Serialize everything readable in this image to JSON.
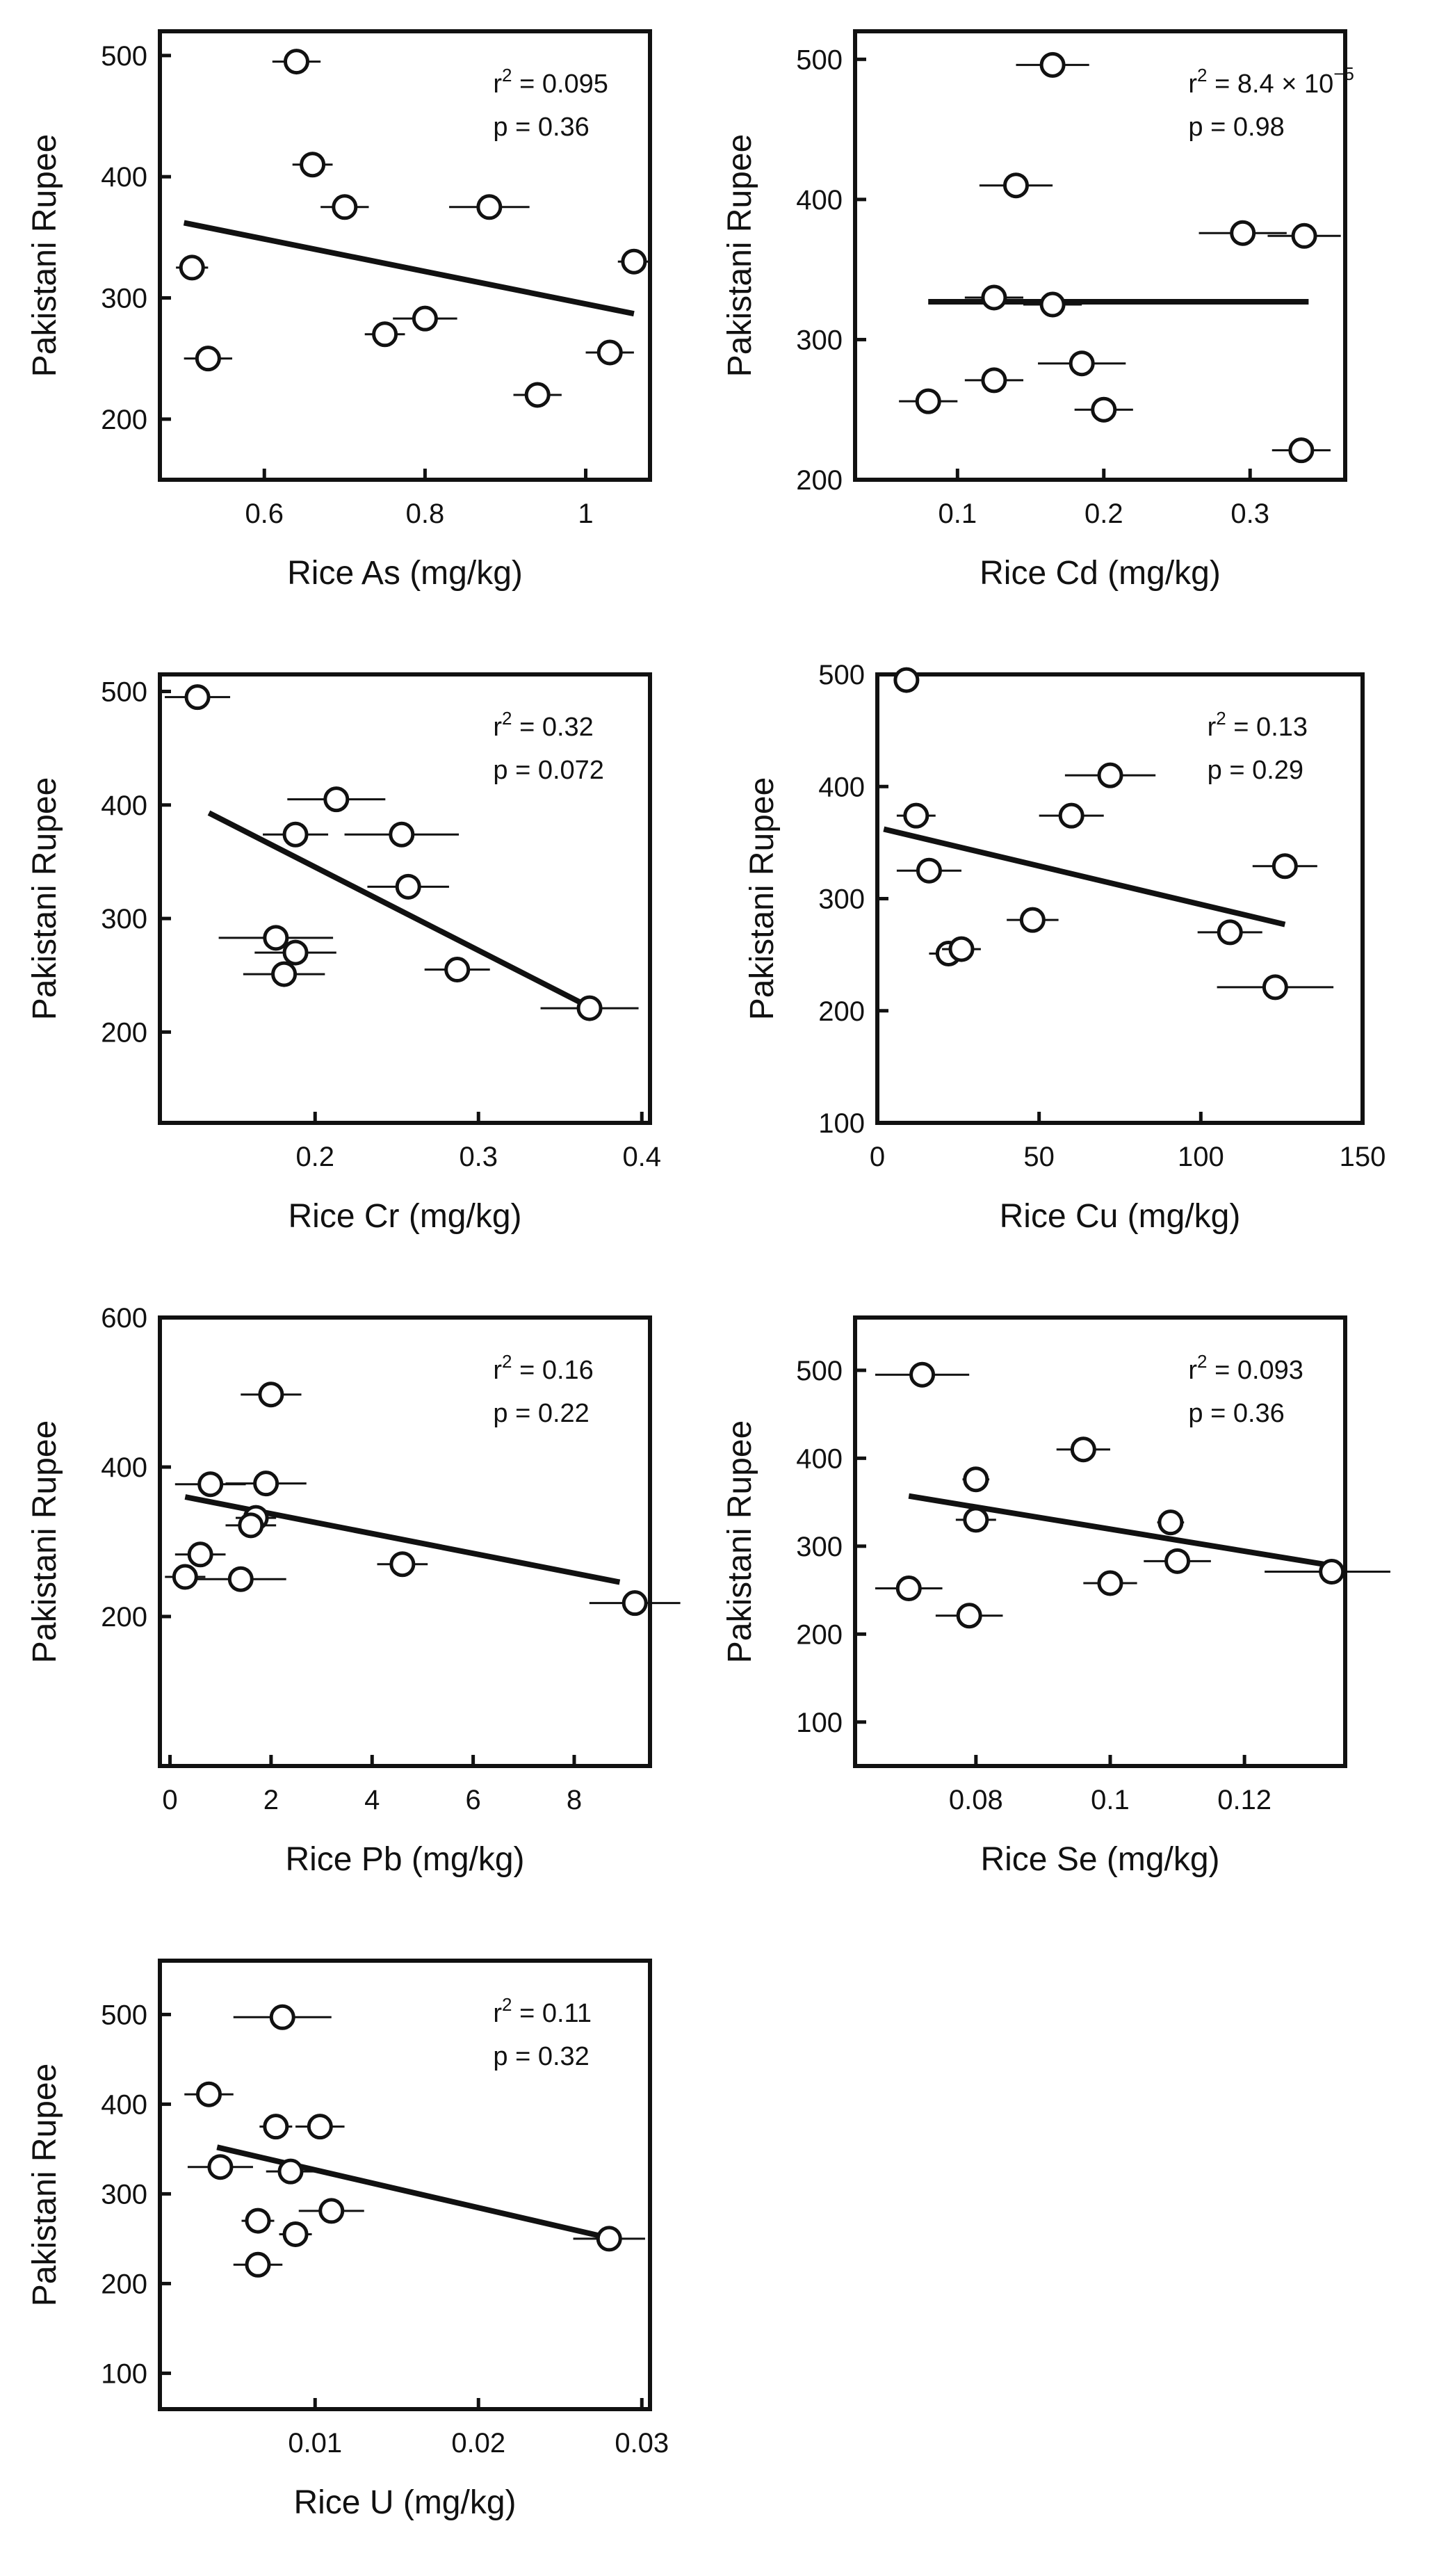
{
  "chart_data": [
    {
      "type": "scatter",
      "xlabel": "Rice As (mg/kg)",
      "ylabel": "Pakistani Rupee",
      "xlim": [
        0.47,
        1.08
      ],
      "ylim": [
        150,
        520
      ],
      "xticks": [
        0.6,
        0.8,
        1
      ],
      "xtick_labels": [
        "0.6",
        "0.8",
        "1"
      ],
      "yticks": [
        200,
        300,
        400,
        500
      ],
      "ytick_labels": [
        "200",
        "300",
        "400",
        "500"
      ],
      "annotation": {
        "r2_label": "r",
        "r2_sup": "2",
        "r2_value": " = 0.095",
        "r2_exp": "",
        "p_text": "p = 0.36"
      },
      "points": [
        {
          "x": 0.64,
          "y": 495,
          "xerr": 0.03
        },
        {
          "x": 0.66,
          "y": 410,
          "xerr": 0.025
        },
        {
          "x": 0.7,
          "y": 375,
          "xerr": 0.03
        },
        {
          "x": 0.88,
          "y": 375,
          "xerr": 0.05
        },
        {
          "x": 0.51,
          "y": 325,
          "xerr": 0.02
        },
        {
          "x": 1.06,
          "y": 330,
          "xerr": 0.02
        },
        {
          "x": 0.8,
          "y": 283,
          "xerr": 0.04
        },
        {
          "x": 0.75,
          "y": 270,
          "xerr": 0.025
        },
        {
          "x": 0.53,
          "y": 250,
          "xerr": 0.03
        },
        {
          "x": 1.03,
          "y": 255,
          "xerr": 0.03
        },
        {
          "x": 0.94,
          "y": 220,
          "xerr": 0.03
        }
      ],
      "fit": {
        "x": [
          0.5,
          1.06
        ],
        "y": [
          362,
          287
        ]
      }
    },
    {
      "type": "scatter",
      "xlabel": "Rice Cd (mg/kg)",
      "ylabel": "Pakistani Rupee",
      "xlim": [
        0.03,
        0.365
      ],
      "ylim": [
        200,
        520
      ],
      "xticks": [
        0.1,
        0.2,
        0.3
      ],
      "xtick_labels": [
        "0.1",
        "0.2",
        "0.3"
      ],
      "yticks": [
        200,
        300,
        400,
        500
      ],
      "ytick_labels": [
        "200",
        "300",
        "400",
        "500"
      ],
      "annotation": {
        "r2_label": "r",
        "r2_sup": "2",
        "r2_value": " = 8.4 × 10",
        "r2_exp": "−5",
        "p_text": "p = 0.98"
      },
      "points": [
        {
          "x": 0.165,
          "y": 496,
          "xerr": 0.025
        },
        {
          "x": 0.14,
          "y": 410,
          "xerr": 0.025
        },
        {
          "x": 0.125,
          "y": 330,
          "xerr": 0.02
        },
        {
          "x": 0.165,
          "y": 325,
          "xerr": 0.02
        },
        {
          "x": 0.295,
          "y": 376,
          "xerr": 0.03
        },
        {
          "x": 0.337,
          "y": 374,
          "xerr": 0.025
        },
        {
          "x": 0.185,
          "y": 283,
          "xerr": 0.03
        },
        {
          "x": 0.125,
          "y": 271,
          "xerr": 0.02
        },
        {
          "x": 0.08,
          "y": 256,
          "xerr": 0.02
        },
        {
          "x": 0.2,
          "y": 250,
          "xerr": 0.02
        },
        {
          "x": 0.335,
          "y": 221,
          "xerr": 0.02
        }
      ],
      "fit": {
        "x": [
          0.08,
          0.34
        ],
        "y": [
          327,
          327
        ]
      }
    },
    {
      "type": "scatter",
      "xlabel": "Rice Cr (mg/kg)",
      "ylabel": "Pakistani Rupee",
      "xlim": [
        0.105,
        0.405
      ],
      "ylim": [
        120,
        515
      ],
      "xticks": [
        0.2,
        0.3,
        0.4
      ],
      "xtick_labels": [
        "0.2",
        "0.3",
        "0.4"
      ],
      "yticks": [
        200,
        300,
        400,
        500
      ],
      "ytick_labels": [
        "200",
        "300",
        "400",
        "500"
      ],
      "annotation": {
        "r2_label": "r",
        "r2_sup": "2",
        "r2_value": " = 0.32",
        "r2_exp": "",
        "p_text": "p = 0.072"
      },
      "points": [
        {
          "x": 0.128,
          "y": 495,
          "xerr": 0.02
        },
        {
          "x": 0.213,
          "y": 405,
          "xerr": 0.03
        },
        {
          "x": 0.188,
          "y": 374,
          "xerr": 0.02
        },
        {
          "x": 0.253,
          "y": 374,
          "xerr": 0.035
        },
        {
          "x": 0.257,
          "y": 328,
          "xerr": 0.025
        },
        {
          "x": 0.176,
          "y": 283,
          "xerr": 0.035
        },
        {
          "x": 0.188,
          "y": 270,
          "xerr": 0.025
        },
        {
          "x": 0.181,
          "y": 251,
          "xerr": 0.025
        },
        {
          "x": 0.287,
          "y": 255,
          "xerr": 0.02
        },
        {
          "x": 0.368,
          "y": 221,
          "xerr": 0.03
        }
      ],
      "fit": {
        "x": [
          0.135,
          0.368
        ],
        "y": [
          393,
          222
        ]
      }
    },
    {
      "type": "scatter",
      "xlabel": "Rice Cu (mg/kg)",
      "ylabel": "Pakistani Rupee",
      "xlim": [
        0,
        150
      ],
      "ylim": [
        100,
        500
      ],
      "xticks": [
        0,
        50,
        100,
        150
      ],
      "xtick_labels": [
        "0",
        "50",
        "100",
        "150"
      ],
      "yticks": [
        100,
        200,
        300,
        400,
        500
      ],
      "ytick_labels": [
        "100",
        "200",
        "300",
        "400",
        "500"
      ],
      "annotation": {
        "r2_label": "r",
        "r2_sup": "2",
        "r2_value": " = 0.13",
        "r2_exp": "",
        "p_text": "p = 0.29"
      },
      "points": [
        {
          "x": 9,
          "y": 495,
          "xerr": 0
        },
        {
          "x": 72,
          "y": 410,
          "xerr": 14
        },
        {
          "x": 12,
          "y": 374,
          "xerr": 6
        },
        {
          "x": 60,
          "y": 374,
          "xerr": 10
        },
        {
          "x": 16,
          "y": 325,
          "xerr": 10
        },
        {
          "x": 126,
          "y": 329,
          "xerr": 10
        },
        {
          "x": 48,
          "y": 281,
          "xerr": 8
        },
        {
          "x": 109,
          "y": 270,
          "xerr": 10
        },
        {
          "x": 22,
          "y": 251,
          "xerr": 6
        },
        {
          "x": 26,
          "y": 255,
          "xerr": 6
        },
        {
          "x": 123,
          "y": 221,
          "xerr": 18
        }
      ],
      "fit": {
        "x": [
          2,
          126
        ],
        "y": [
          362,
          277
        ]
      }
    },
    {
      "type": "scatter",
      "xlabel": "Rice Pb (mg/kg)",
      "ylabel": "Pakistani Rupee",
      "xlim": [
        -0.2,
        9.5
      ],
      "ylim": [
        0,
        600
      ],
      "xticks": [
        0,
        2,
        4,
        6,
        8
      ],
      "xtick_labels": [
        "0",
        "2",
        "4",
        "6",
        "8"
      ],
      "yticks": [
        200,
        400,
        600
      ],
      "ytick_labels": [
        "200",
        "400",
        "600"
      ],
      "annotation": {
        "r2_label": "r",
        "r2_sup": "2",
        "r2_value": " = 0.16",
        "r2_exp": "",
        "p_text": "p = 0.22"
      },
      "points": [
        {
          "x": 2.0,
          "y": 497,
          "xerr": 0.6
        },
        {
          "x": 0.8,
          "y": 377,
          "xerr": 0.7
        },
        {
          "x": 1.9,
          "y": 378,
          "xerr": 0.8
        },
        {
          "x": 1.7,
          "y": 332,
          "xerr": 0.4
        },
        {
          "x": 1.6,
          "y": 322,
          "xerr": 0.5
        },
        {
          "x": 0.6,
          "y": 283,
          "xerr": 0.5
        },
        {
          "x": 4.6,
          "y": 270,
          "xerr": 0.5
        },
        {
          "x": 0.3,
          "y": 253,
          "xerr": 0.4
        },
        {
          "x": 1.4,
          "y": 250,
          "xerr": 0.9
        },
        {
          "x": 9.2,
          "y": 218,
          "xerr": 0.9
        }
      ],
      "fit": {
        "x": [
          0.3,
          8.9
        ],
        "y": [
          360,
          246
        ]
      }
    },
    {
      "type": "scatter",
      "xlabel": "Rice Se (mg/kg)",
      "ylabel": "Pakistani Rupee",
      "xlim": [
        0.062,
        0.135
      ],
      "ylim": [
        50,
        560
      ],
      "xticks": [
        0.08,
        0.1,
        0.12
      ],
      "xtick_labels": [
        "0.08",
        "0.1",
        "0.12"
      ],
      "yticks": [
        100,
        200,
        300,
        400,
        500
      ],
      "ytick_labels": [
        "100",
        "200",
        "300",
        "400",
        "500"
      ],
      "annotation": {
        "r2_label": "r",
        "r2_sup": "2",
        "r2_value": " = 0.093",
        "r2_exp": "",
        "p_text": "p = 0.36"
      },
      "points": [
        {
          "x": 0.072,
          "y": 495,
          "xerr": 0.007
        },
        {
          "x": 0.096,
          "y": 410,
          "xerr": 0.004
        },
        {
          "x": 0.08,
          "y": 376,
          "xerr": 0.002
        },
        {
          "x": 0.08,
          "y": 330,
          "xerr": 0.003
        },
        {
          "x": 0.109,
          "y": 327,
          "xerr": 0.002
        },
        {
          "x": 0.11,
          "y": 283,
          "xerr": 0.005
        },
        {
          "x": 0.133,
          "y": 271,
          "xerr": 0.01
        },
        {
          "x": 0.07,
          "y": 252,
          "xerr": 0.005
        },
        {
          "x": 0.1,
          "y": 258,
          "xerr": 0.004
        },
        {
          "x": 0.079,
          "y": 221,
          "xerr": 0.005
        }
      ],
      "fit": {
        "x": [
          0.07,
          0.133
        ],
        "y": [
          357,
          278
        ]
      }
    },
    {
      "type": "scatter",
      "xlabel": "Rice U (mg/kg)",
      "ylabel": "Pakistani Rupee",
      "xlim": [
        0.0005,
        0.0305
      ],
      "ylim": [
        60,
        560
      ],
      "xticks": [
        0.01,
        0.02,
        0.03
      ],
      "xtick_labels": [
        "0.01",
        "0.02",
        "0.03"
      ],
      "yticks": [
        100,
        200,
        300,
        400,
        500
      ],
      "ytick_labels": [
        "100",
        "200",
        "300",
        "400",
        "500"
      ],
      "annotation": {
        "r2_label": "r",
        "r2_sup": "2",
        "r2_value": " = 0.11",
        "r2_exp": "",
        "p_text": "p = 0.32"
      },
      "points": [
        {
          "x": 0.008,
          "y": 497,
          "xerr": 0.003
        },
        {
          "x": 0.0035,
          "y": 411,
          "xerr": 0.0015
        },
        {
          "x": 0.0076,
          "y": 375,
          "xerr": 0.001
        },
        {
          "x": 0.0103,
          "y": 375,
          "xerr": 0.0015
        },
        {
          "x": 0.0042,
          "y": 330,
          "xerr": 0.002
        },
        {
          "x": 0.0085,
          "y": 325,
          "xerr": 0.0015
        },
        {
          "x": 0.011,
          "y": 281,
          "xerr": 0.002
        },
        {
          "x": 0.0065,
          "y": 270,
          "xerr": 0.001
        },
        {
          "x": 0.0088,
          "y": 255,
          "xerr": 0.001
        },
        {
          "x": 0.0065,
          "y": 221,
          "xerr": 0.0015
        },
        {
          "x": 0.028,
          "y": 250,
          "xerr": 0.0022
        }
      ],
      "fit": {
        "x": [
          0.004,
          0.0282
        ],
        "y": [
          352,
          250
        ]
      }
    }
  ]
}
